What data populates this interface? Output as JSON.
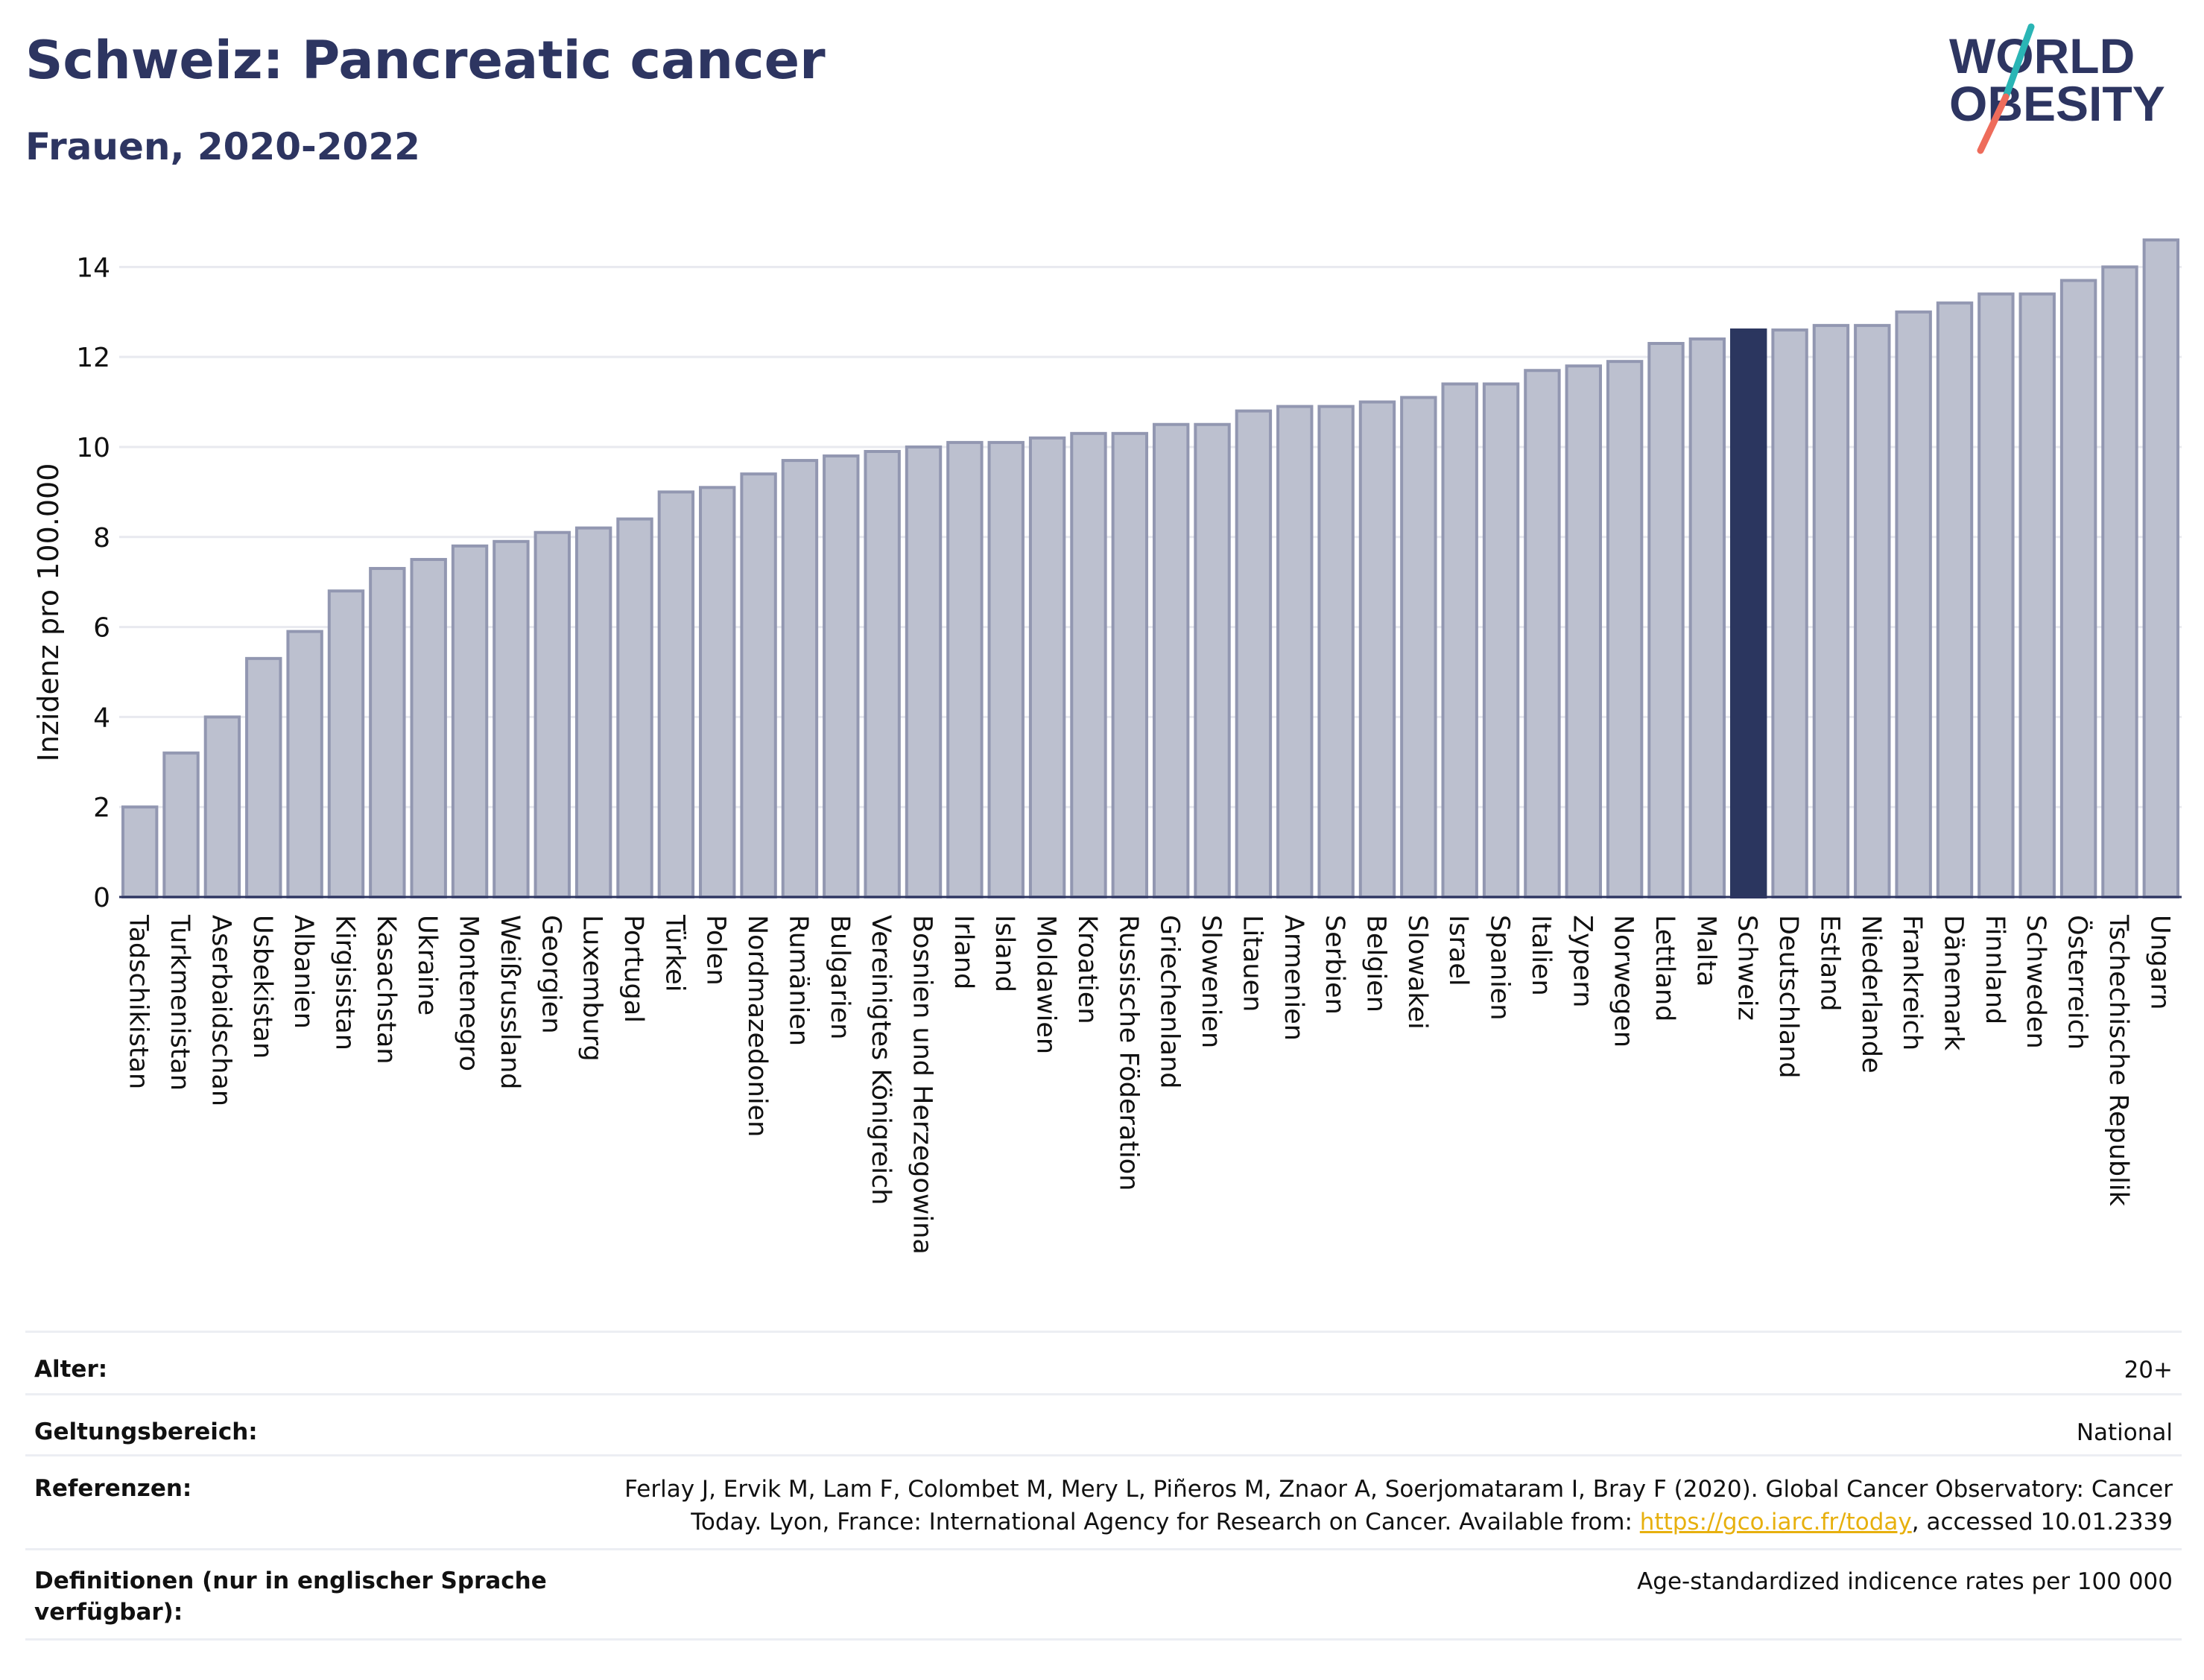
{
  "header": {
    "title": "Schweiz: Pancreatic cancer",
    "subtitle": "Frauen, 2020-2022"
  },
  "logo": {
    "line1": "WORLD",
    "line2": "OBESITY",
    "colors": {
      "text": "#2d3561",
      "slash_teal": "#2ab5b5",
      "slash_coral": "#ee6c5b"
    }
  },
  "chart_data": {
    "type": "bar",
    "ylabel": "Inzidenz pro 100.000",
    "ylim": [
      0,
      14.8
    ],
    "yticks": [
      0,
      2,
      4,
      6,
      8,
      10,
      12,
      14
    ],
    "grid": true,
    "highlight": "Schweiz",
    "colors": {
      "bar": "#bcc0cf",
      "bar_border": "#9297b1",
      "highlight": "#2b365f",
      "grid": "#e8e9ef",
      "axis": "#2d3561"
    },
    "categories": [
      "Tadschikistan",
      "Turkmenistan",
      "Aserbaidschan",
      "Usbekistan",
      "Albanien",
      "Kirgisistan",
      "Kasachstan",
      "Ukraine",
      "Montenegro",
      "Weißrussland",
      "Georgien",
      "Luxemburg",
      "Portugal",
      "Türkei",
      "Polen",
      "Nordmazedonien",
      "Rumänien",
      "Bulgarien",
      "Vereinigtes Königreich",
      "Bosnien und Herzegowina",
      "Irland",
      "Island",
      "Moldawien",
      "Kroatien",
      "Russische Föderation",
      "Griechenland",
      "Slowenien",
      "Litauen",
      "Armenien",
      "Serbien",
      "Belgien",
      "Slowakei",
      "Israel",
      "Spanien",
      "Italien",
      "Zypern",
      "Norwegen",
      "Lettland",
      "Malta",
      "Schweiz",
      "Deutschland",
      "Estland",
      "Niederlande",
      "Frankreich",
      "Dänemark",
      "Finnland",
      "Schweden",
      "Österreich",
      "Tschechische Republik",
      "Ungarn"
    ],
    "values": [
      2.0,
      3.2,
      4.0,
      5.3,
      5.9,
      6.8,
      7.3,
      7.5,
      7.8,
      7.9,
      8.1,
      8.2,
      8.4,
      9.0,
      9.1,
      9.4,
      9.7,
      9.8,
      9.9,
      10.0,
      10.1,
      10.1,
      10.2,
      10.3,
      10.3,
      10.5,
      10.5,
      10.8,
      10.9,
      10.9,
      11.0,
      11.1,
      11.4,
      11.4,
      11.7,
      11.8,
      11.9,
      12.3,
      12.4,
      12.6,
      12.6,
      12.7,
      12.7,
      13.0,
      13.2,
      13.4,
      13.4,
      13.7,
      14.0,
      14.6
    ]
  },
  "info": {
    "alter_label": "Alter:",
    "alter_value": "20+",
    "scope_label": "Geltungsbereich:",
    "scope_value": "National",
    "ref_label": "Referenzen:",
    "ref_text_line1": "Ferlay J, Ervik M, Lam F, Colombet M, Mery L, Piñeros M, Znaor A, Soerjomataram I, Bray F (2020). Global Cancer Observatory: Cancer",
    "ref_text_line2a": "Today. Lyon, France: International Agency for Research on Cancer. Available from: ",
    "ref_link": "https://gco.iarc.fr/today",
    "ref_text_line2b": ", accessed 10.01.2339",
    "def_label": "Definitionen (nur in englischer Sprache verfügbar):",
    "def_value": "Age-standardized indicence rates per 100 000"
  }
}
